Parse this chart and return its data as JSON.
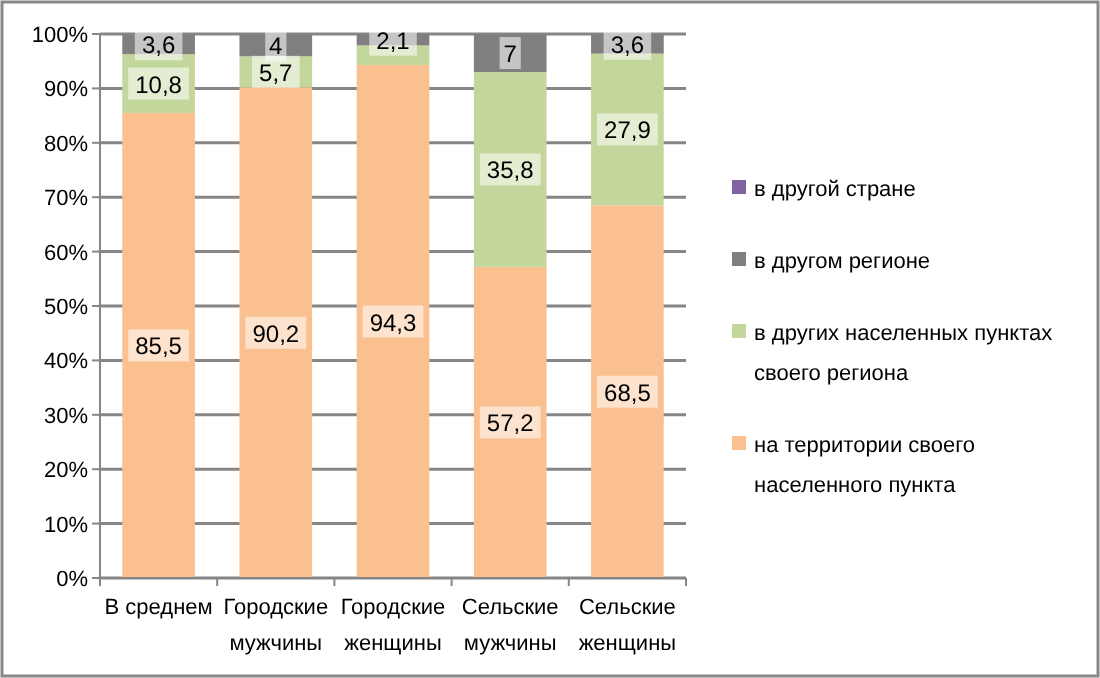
{
  "chart_data": {
    "type": "bar",
    "stacked": true,
    "categories": [
      "В среднем",
      "Городские\nмужчины",
      "Городские\nженщины",
      "Сельские\nмужчины",
      "Сельские\nженщины"
    ],
    "series": [
      {
        "name": "на территории своего населенного пункта",
        "color": "#fac090",
        "values": [
          85.5,
          90.2,
          94.3,
          57.2,
          68.5
        ],
        "value_labels": [
          "85,5",
          "90,2",
          "94,3",
          "57,2",
          "68,5"
        ]
      },
      {
        "name": "в других населенных пунктах своего региона",
        "color": "#c3d69b",
        "values": [
          10.8,
          5.7,
          3.6,
          35.8,
          27.9
        ],
        "value_labels": [
          "10,8",
          "5,7",
          null,
          "35,8",
          "27,9"
        ]
      },
      {
        "name": "в другом регионе",
        "color": "#7f7f7f",
        "values": [
          3.6,
          4,
          2.1,
          7,
          3.6
        ],
        "value_labels": [
          "3,6",
          "4",
          "2,1",
          "7",
          "3,6"
        ]
      },
      {
        "name": "в другой стране",
        "color": "#8064a2",
        "values": [
          null,
          null,
          null,
          null,
          null
        ]
      }
    ],
    "ylim": [
      0,
      100
    ],
    "yticks": [
      {
        "value": 0,
        "label": "0%"
      },
      {
        "value": 10,
        "label": "10%"
      },
      {
        "value": 20,
        "label": "20%"
      },
      {
        "value": 30,
        "label": "30%"
      },
      {
        "value": 40,
        "label": "40%"
      },
      {
        "value": 50,
        "label": "50%"
      },
      {
        "value": 60,
        "label": "60%"
      },
      {
        "value": 70,
        "label": "70%"
      },
      {
        "value": 80,
        "label": "80%"
      },
      {
        "value": 90,
        "label": "90%"
      },
      {
        "value": 100,
        "label": "100%"
      }
    ],
    "grid": "y",
    "legend": "right"
  }
}
